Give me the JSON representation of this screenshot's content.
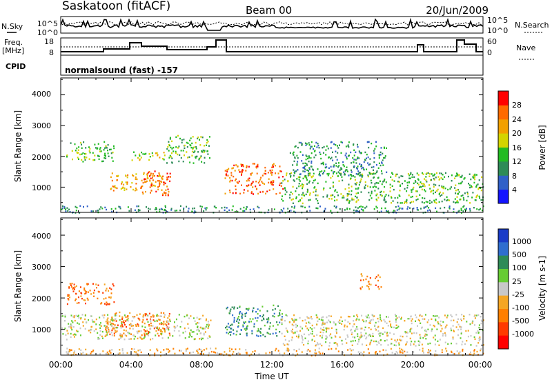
{
  "header": {
    "station": "Saskatoon (fitACF)",
    "beam": "Beam 00",
    "date": "20/Jun/2009"
  },
  "ticker": {
    "nsky_label": "N.Sky",
    "nsky_ticks": [
      "10^5",
      "10^0"
    ],
    "nsearch_label": "N.Search",
    "nsearch_ticks": [
      "10^5",
      "10^0"
    ],
    "freq_label": "Freq.",
    "freq_unit": "[MHz]",
    "freq_ticks": [
      "18",
      "8"
    ],
    "nave_label": "Nave",
    "nave_ticks": [
      "60",
      "0"
    ],
    "cpid_label": "CPID",
    "cpid_value": "normalsound (fast) -157"
  },
  "time_axis": {
    "label": "Time UT",
    "ticks": [
      "00:00",
      "04:00",
      "08:00",
      "12:00",
      "16:00",
      "20:00",
      "00:00"
    ]
  },
  "chart_data": [
    {
      "type": "heatmap",
      "ylabel": "Slant Range [km]",
      "yticks": [
        "1000",
        "2000",
        "3000",
        "4000"
      ],
      "xlim": [
        "00:00",
        "24:00"
      ],
      "ylim": [
        180,
        4550
      ],
      "colorbar": {
        "label": "Power [dB]",
        "ticks": [
          "4",
          "8",
          "12",
          "16",
          "20",
          "24",
          "28"
        ],
        "colors": [
          "#1414ff",
          "#3060c8",
          "#2e8b57",
          "#22bb22",
          "#d4d400",
          "#f2a000",
          "#ff6a00",
          "#ff0000"
        ]
      },
      "regions": [
        {
          "t": [
            0.3,
            3.0
          ],
          "r": [
            1850,
            2500
          ],
          "level": 3
        },
        {
          "t": [
            2.8,
            5.8
          ],
          "r": [
            900,
            1500
          ],
          "level": 5
        },
        {
          "t": [
            4.5,
            6.2
          ],
          "r": [
            750,
            1550
          ],
          "level": 6
        },
        {
          "t": [
            4.0,
            6.0
          ],
          "r": [
            1900,
            2200
          ],
          "level": 4
        },
        {
          "t": [
            6.0,
            8.5
          ],
          "r": [
            1800,
            2700
          ],
          "level": 3
        },
        {
          "t": [
            9.3,
            12.6
          ],
          "r": [
            800,
            1800
          ],
          "level": 6
        },
        {
          "t": [
            12.5,
            24.0
          ],
          "r": [
            500,
            1500
          ],
          "level": 3
        },
        {
          "t": [
            13.0,
            18.5
          ],
          "r": [
            1400,
            2500
          ],
          "level": 2
        },
        {
          "t": [
            0.0,
            24.0
          ],
          "r": [
            190,
            420
          ],
          "level": 2
        }
      ]
    },
    {
      "type": "heatmap",
      "ylabel": "Slant Range [km]",
      "yticks": [
        "1000",
        "2000",
        "3000",
        "4000"
      ],
      "xlim": [
        "00:00",
        "24:00"
      ],
      "ylim": [
        180,
        4550
      ],
      "colorbar": {
        "label": "Velocity [m s-1]",
        "ticks": [
          "1000",
          "500",
          "100",
          "25",
          "-25",
          "-100",
          "-500",
          "-1000"
        ],
        "colors": [
          "#1a3cc8",
          "#2f6ecf",
          "#2e8b57",
          "#66cc33",
          "#c8c8c8",
          "#f5a623",
          "#ff7f00",
          "#ff3a00",
          "#ff0000"
        ]
      },
      "regions": [
        {
          "t": [
            0.3,
            3.0
          ],
          "r": [
            1800,
            2500
          ],
          "level": 6
        },
        {
          "t": [
            2.5,
            6.2
          ],
          "r": [
            800,
            1600
          ],
          "level": 6
        },
        {
          "t": [
            0.0,
            8.5
          ],
          "r": [
            700,
            1500
          ],
          "level": 4
        },
        {
          "t": [
            9.3,
            12.6
          ],
          "r": [
            800,
            1800
          ],
          "level": 2
        },
        {
          "t": [
            12.5,
            24.0
          ],
          "r": [
            500,
            1500
          ],
          "level": 4
        },
        {
          "t": [
            17.0,
            18.2
          ],
          "r": [
            2300,
            2800
          ],
          "level": 6
        },
        {
          "t": [
            0.0,
            24.0
          ],
          "r": [
            190,
            420
          ],
          "level": 5
        }
      ]
    }
  ]
}
